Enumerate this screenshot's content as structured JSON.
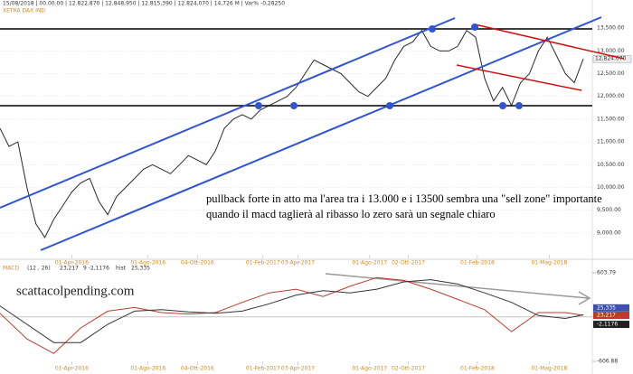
{
  "chart_data": [
    {
      "type": "line",
      "title": "XETRA DAX IND",
      "subtitle": "15/08/2018 | 00.00.00 | 12.822,870 | 12.848,950 | 12.815,390 | 12.824,070 | 14,726 M | Var% -0,28250",
      "annotations": [
        "pullback forte in atto ma l'area tra i 13.000 e i 13500 sembra una \"sell zone\" importante",
        "quando il macd taglierà al ribasso lo zero sarà un segnale chiaro"
      ],
      "color": "#2a2a2a",
      "values": [
        11300,
        10900,
        11000,
        10000,
        9200,
        8900,
        9300,
        9600,
        9900,
        10100,
        10200,
        9700,
        9400,
        9800,
        10000,
        10200,
        10400,
        10500,
        10400,
        10300,
        10500,
        10700,
        10600,
        10500,
        10800,
        11300,
        11500,
        11600,
        11500,
        11700,
        11800,
        11900,
        12000,
        12200,
        12500,
        12800,
        12700,
        12600,
        12500,
        12300,
        12100,
        12000,
        12200,
        12400,
        12800,
        13100,
        13200,
        13450,
        13100,
        13000,
        13000,
        13100,
        13450,
        13300,
        12400,
        11900,
        12200,
        11800,
        12300,
        12500,
        13000,
        13300,
        12900,
        12500,
        12300,
        12824.07
      ],
      "last_label": {
        "value": 12824.07,
        "label": "12,824.070"
      },
      "xlim": [
        0,
        65.5
      ],
      "xticks": [
        {
          "value": 8,
          "label": "01-Apr-2016"
        },
        {
          "value": 16.5,
          "label": "01-Ago-2016"
        },
        {
          "value": 22,
          "label": "04-Ott-2016"
        },
        {
          "value": 29.3,
          "label": "01-Feb-2017"
        },
        {
          "value": 33.2,
          "label": "03-Apr-2017"
        },
        {
          "value": 41.2,
          "label": "01-Ago-2017"
        },
        {
          "value": 45.5,
          "label": "02-Ott-2017"
        },
        {
          "value": 53.2,
          "label": "01-Feb-2018"
        },
        {
          "value": 61.2,
          "label": "01-Mag-2018"
        }
      ],
      "ylim": [
        8520,
        13960
      ],
      "yticks": [
        {
          "value": 9000,
          "label": "9,000.00"
        },
        {
          "value": 9500,
          "label": "9,500.00"
        },
        {
          "value": 10000,
          "label": "10,000.00"
        },
        {
          "value": 10500,
          "label": "10,500.00"
        },
        {
          "value": 11000,
          "label": "11,000.00"
        },
        {
          "value": 11500,
          "label": "11,500.00"
        },
        {
          "value": 12000,
          "label": "12,000.00"
        },
        {
          "value": 12500,
          "label": "12,500.00"
        },
        {
          "value": 13000,
          "label": "13,000.00"
        },
        {
          "value": 13500,
          "label": "13,500.00"
        }
      ],
      "grid": true
    },
    {
      "type": "line",
      "title": "MACD",
      "params": "(12 , 26)",
      "stats": [
        "23,217",
        "9 -2,1176",
        "hist",
        "25,335"
      ],
      "watermark": "scattacolpending.com",
      "x": [
        0,
        3,
        6,
        9,
        12,
        15,
        18,
        21,
        24,
        27,
        30,
        33,
        36,
        39,
        42,
        45,
        48,
        51,
        54,
        57,
        60,
        63,
        65
      ],
      "series": [
        {
          "color": "#c0392b",
          "values": [
            50,
            -300,
            -500,
            -150,
            80,
            130,
            60,
            40,
            60,
            200,
            330,
            380,
            280,
            420,
            540,
            500,
            380,
            240,
            100,
            -200,
            60,
            60,
            23
          ]
        },
        {
          "color": "#333333",
          "values": [
            150,
            -100,
            -350,
            -350,
            -100,
            80,
            100,
            70,
            50,
            80,
            180,
            300,
            360,
            330,
            380,
            480,
            510,
            450,
            330,
            200,
            20,
            -20,
            30
          ]
        }
      ],
      "latest": [
        {
          "value": 25.335,
          "label": "25,335",
          "color": "#3b4fb5"
        },
        {
          "value": 23.217,
          "label": "23,217",
          "color": "#c0392b"
        },
        {
          "value": -2.1176,
          "label": "-2,1176",
          "color": "#222"
        }
      ],
      "xlim": [
        0,
        65.5
      ],
      "xticks": [
        {
          "value": 8,
          "label": "01-Apr-2016"
        },
        {
          "value": 16.5,
          "label": "01-Ago-2016"
        },
        {
          "value": 22,
          "label": "04-Ott-2016"
        },
        {
          "value": 29.3,
          "label": "01-Feb-2017"
        },
        {
          "value": 33.2,
          "label": "03-Apr-2017"
        },
        {
          "value": 41.2,
          "label": "01-Ago-2017"
        },
        {
          "value": 45.5,
          "label": "02-Ott-2017"
        },
        {
          "value": 53.2,
          "label": "01-Feb-2018"
        },
        {
          "value": 61.2,
          "label": "01-Mag-2018"
        }
      ],
      "ylim": [
        -606.88,
        603.79
      ],
      "yticks": [
        -606.88,
        603.79
      ],
      "grid": false
    }
  ]
}
